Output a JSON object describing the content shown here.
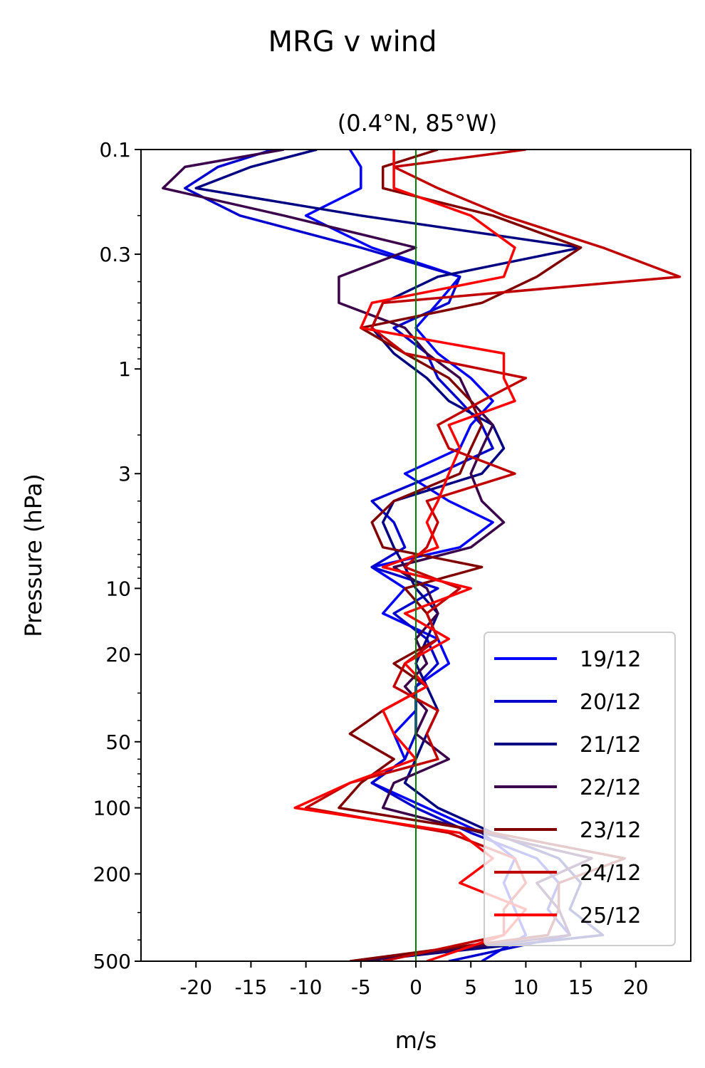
{
  "chart_data": {
    "type": "line",
    "title": "MRG v wind",
    "subtitle": "(0.4°N, 85°W)",
    "xlabel": "m/s",
    "ylabel": "Pressure (hPa)",
    "xlim": [
      -25,
      25
    ],
    "ylim": [
      500,
      0.1
    ],
    "yscale": "log",
    "xticks": [
      -20,
      -15,
      -10,
      -5,
      0,
      5,
      10,
      15,
      20
    ],
    "xtick_labels": [
      "-20",
      "-15",
      "-10",
      "-5",
      "0",
      "5",
      "10",
      "15",
      "20"
    ],
    "yticks": [
      0.1,
      0.3,
      1,
      3,
      10,
      20,
      50,
      100,
      200,
      500
    ],
    "ytick_labels": [
      "0.1",
      "0.3",
      "1",
      "3",
      "10",
      "20",
      "50",
      "100",
      "200",
      "500"
    ],
    "reference_line": {
      "x": 0,
      "color": "#008000"
    },
    "legend_position": "lower right",
    "series": [
      {
        "name": "19/12",
        "color": "#0000ff",
        "y": [
          0.1,
          0.12,
          0.15,
          0.2,
          0.28,
          0.38,
          0.5,
          0.65,
          0.85,
          1.1,
          1.4,
          1.8,
          2.3,
          3,
          4,
          5,
          6.5,
          8,
          10,
          13,
          17,
          22,
          28,
          36,
          46,
          60,
          77,
          100,
          130,
          170,
          220,
          290,
          380,
          500
        ],
        "x": [
          -6,
          -5,
          -5,
          -10,
          -4,
          4,
          2,
          0,
          2,
          5,
          7,
          5,
          4,
          -1,
          3,
          7,
          4,
          -4,
          -1,
          -3,
          2,
          3,
          0,
          0,
          -2,
          -1,
          -4,
          1,
          6,
          9,
          8,
          9,
          10,
          6
        ]
      },
      {
        "name": "20/12",
        "color": "#0000cc",
        "y": [
          0.1,
          0.12,
          0.15,
          0.2,
          0.28,
          0.38,
          0.5,
          0.65,
          0.85,
          1.1,
          1.4,
          1.8,
          2.3,
          3,
          4,
          5,
          6.5,
          8,
          10,
          13,
          17,
          22,
          28,
          36,
          46,
          60,
          77,
          100,
          130,
          170,
          220,
          290,
          380,
          500
        ],
        "x": [
          -13,
          -18,
          -21,
          -16,
          -5,
          4,
          3,
          -2,
          1,
          2,
          4,
          6,
          7,
          2,
          -4,
          -2,
          -1,
          -4,
          2,
          -2,
          1,
          2,
          0,
          0,
          0,
          -1,
          -4,
          0,
          5,
          11,
          13,
          12,
          14,
          3
        ]
      },
      {
        "name": "21/12",
        "color": "#000080",
        "y": [
          0.1,
          0.12,
          0.15,
          0.2,
          0.28,
          0.38,
          0.5,
          0.65,
          0.85,
          1.1,
          1.4,
          1.8,
          2.3,
          3,
          4,
          5,
          6.5,
          8,
          10,
          13,
          17,
          22,
          28,
          36,
          46,
          60,
          77,
          100,
          130,
          170,
          220,
          290,
          380,
          500
        ],
        "x": [
          -9,
          -15,
          -20,
          -5,
          15,
          2,
          -3,
          -4,
          -2,
          1,
          3,
          7,
          8,
          6,
          -2,
          -3,
          -2,
          -1,
          0,
          2,
          1,
          0,
          1,
          2,
          1,
          0,
          -1,
          2,
          7,
          13,
          15,
          14,
          17,
          -5
        ]
      },
      {
        "name": "22/12",
        "color": "#3a004a",
        "y": [
          0.1,
          0.12,
          0.15,
          0.2,
          0.28,
          0.38,
          0.5,
          0.65,
          0.85,
          1.1,
          1.4,
          1.8,
          2.3,
          3,
          4,
          5,
          6.5,
          8,
          10,
          13,
          17,
          22,
          28,
          36,
          46,
          60,
          77,
          100,
          130,
          170,
          220,
          290,
          380,
          500
        ],
        "x": [
          -12,
          -21,
          -23,
          -12,
          0,
          -7,
          -7,
          -1,
          1,
          4,
          5,
          7,
          6,
          5,
          6,
          8,
          5,
          -2,
          1,
          2,
          0,
          1,
          -1,
          1,
          0,
          3,
          -2,
          -3,
          6,
          16,
          11,
          13,
          14,
          -5
        ]
      },
      {
        "name": "23/12",
        "color": "#800000",
        "y": [
          0.1,
          0.12,
          0.15,
          0.2,
          0.28,
          0.38,
          0.5,
          0.65,
          0.85,
          1.1,
          1.4,
          1.8,
          2.3,
          3,
          4,
          5,
          6.5,
          8,
          10,
          13,
          17,
          22,
          28,
          36,
          46,
          60,
          77,
          100,
          130,
          170,
          220,
          290,
          380,
          500
        ],
        "x": [
          2,
          -3,
          -3,
          7,
          15,
          11,
          6,
          -5,
          -1,
          3,
          5,
          6,
          5,
          4,
          -2,
          -4,
          -3,
          6,
          -1,
          1,
          2,
          -2,
          1,
          -3,
          -6,
          -2,
          -5,
          -7,
          7,
          19,
          13,
          13,
          12,
          -6
        ]
      },
      {
        "name": "24/12",
        "color": "#c00000",
        "y": [
          0.1,
          0.12,
          0.15,
          0.2,
          0.28,
          0.38,
          0.5,
          0.65,
          0.85,
          1.1,
          1.4,
          1.8,
          2.3,
          3,
          4,
          5,
          6.5,
          8,
          10,
          13,
          17,
          22,
          28,
          36,
          46,
          60,
          77,
          100,
          130,
          170,
          220,
          290,
          380,
          500
        ],
        "x": [
          10,
          -2,
          2,
          8,
          17,
          24,
          -3,
          -4,
          -1,
          10,
          6,
          2,
          3,
          9,
          1,
          2,
          1,
          -1,
          4,
          1,
          2,
          -1,
          -2,
          2,
          1,
          2,
          -6,
          -10,
          3,
          9,
          10,
          8,
          8,
          -3
        ]
      },
      {
        "name": "25/12",
        "color": "#ff0000",
        "y": [
          0.1,
          0.12,
          0.15,
          0.2,
          0.28,
          0.38,
          0.5,
          0.65,
          0.85,
          1.1,
          1.4,
          1.8,
          2.3,
          3,
          4,
          5,
          6.5,
          8,
          10,
          13,
          17,
          22,
          28,
          36,
          46,
          60,
          77,
          100,
          130,
          170,
          220,
          290,
          380,
          500
        ],
        "x": [
          -2,
          -2,
          -2,
          5,
          9,
          8,
          -4,
          -5,
          8,
          8,
          9,
          3,
          4,
          3,
          2,
          1,
          2,
          -3,
          5,
          -1,
          3,
          -1,
          1,
          -3,
          -2,
          0,
          -6,
          -11,
          4,
          7,
          4,
          10,
          8,
          1
        ]
      }
    ]
  }
}
